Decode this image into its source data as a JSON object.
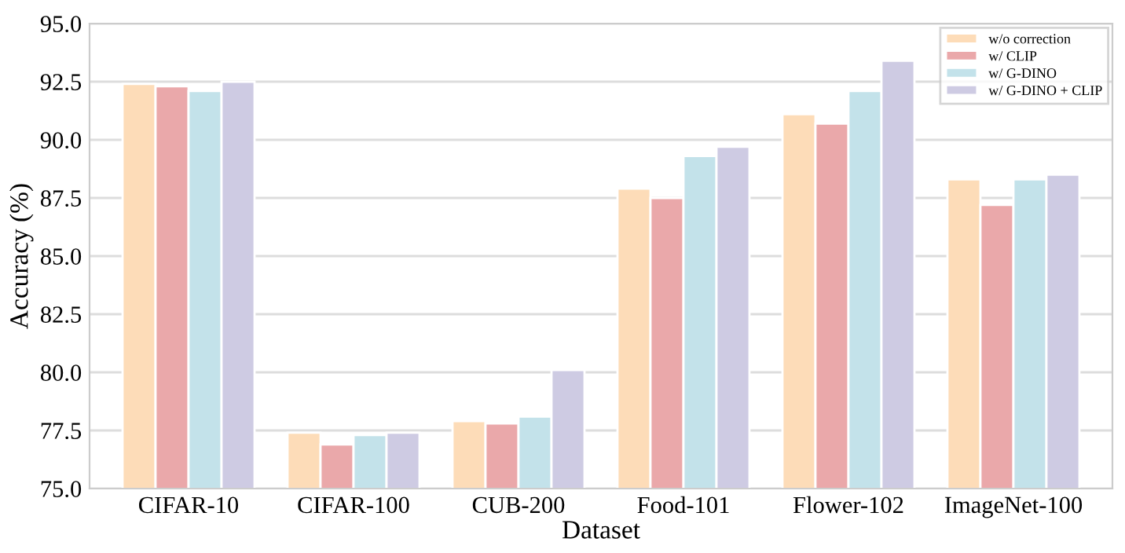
{
  "chart_data": {
    "type": "bar",
    "xlabel": "Dataset",
    "ylabel": "Accuracy (%)",
    "categories": [
      "CIFAR-10",
      "CIFAR-100",
      "CUB-200",
      "Food-101",
      "Flower-102",
      "ImageNet-100"
    ],
    "series": [
      {
        "name": "w/o correction",
        "color": "#fddcb8",
        "values": [
          92.4,
          77.4,
          77.9,
          87.9,
          91.1,
          88.3
        ]
      },
      {
        "name": "w/ CLIP",
        "color": "#eaa8aa",
        "values": [
          92.3,
          76.9,
          77.8,
          87.5,
          90.7,
          87.2
        ]
      },
      {
        "name": "w/ G-DINO",
        "color": "#c3e2ea",
        "values": [
          92.1,
          77.3,
          78.1,
          89.3,
          92.1,
          88.3
        ]
      },
      {
        "name": "w/ G-DINO + CLIP",
        "color": "#cecbe3",
        "values": [
          92.5,
          77.4,
          80.1,
          89.7,
          93.4,
          88.5
        ]
      }
    ],
    "ylim": [
      75.0,
      95.0
    ],
    "yticks": [
      {
        "value": 75,
        "label": "75.0"
      },
      {
        "value": 77.5,
        "label": "77.5"
      },
      {
        "value": 80,
        "label": "80.0"
      },
      {
        "value": 82.5,
        "label": "82.5"
      },
      {
        "value": 85,
        "label": "85.0"
      },
      {
        "value": 87.5,
        "label": "87.5"
      },
      {
        "value": 90,
        "label": "90.0"
      },
      {
        "value": 92.5,
        "label": "92.5"
      },
      {
        "value": 95,
        "label": "95.0"
      }
    ],
    "grid": "y",
    "legend": "top right"
  }
}
